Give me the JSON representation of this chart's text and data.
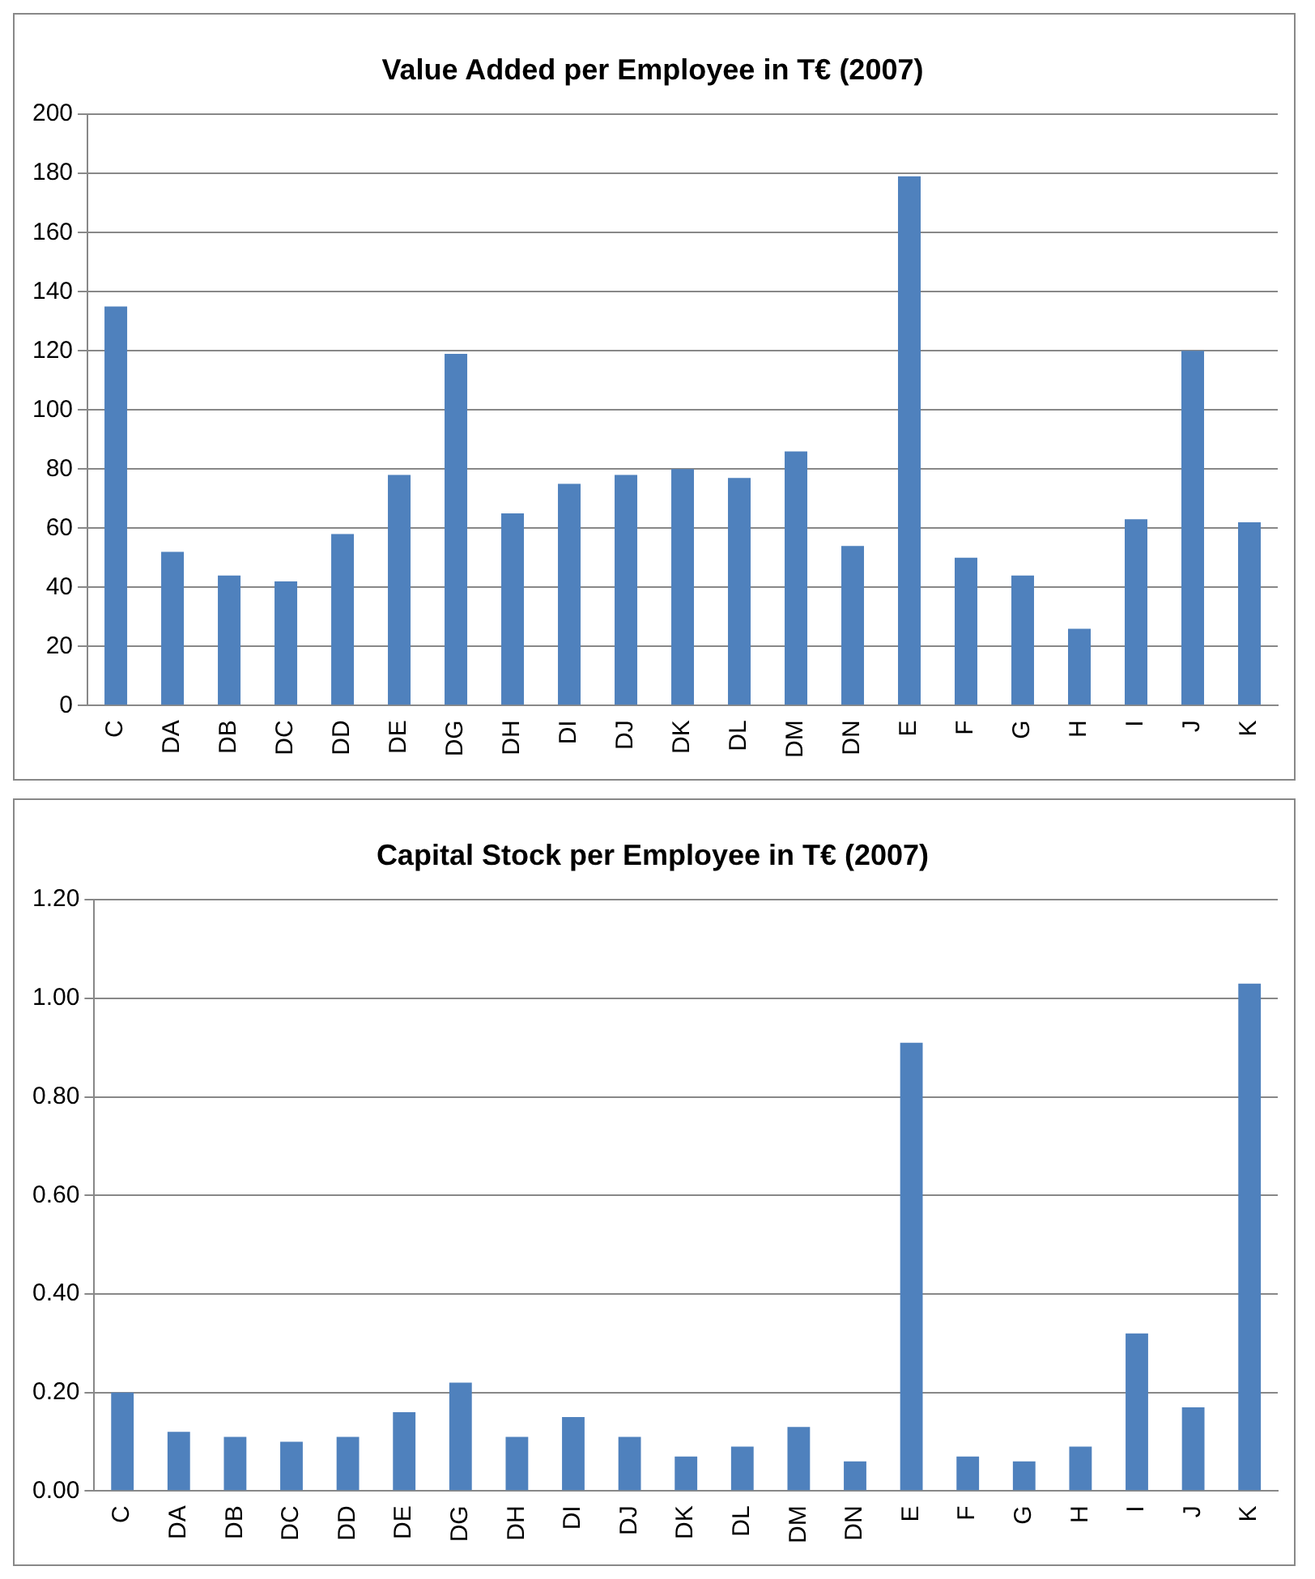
{
  "chart_data": [
    {
      "type": "bar",
      "title": "Value Added per Employee in T€ (2007)",
      "categories": [
        "C",
        "DA",
        "DB",
        "DC",
        "DD",
        "DE",
        "DG",
        "DH",
        "DI",
        "DJ",
        "DK",
        "DL",
        "DM",
        "DN",
        "E",
        "F",
        "G",
        "H",
        "I",
        "J",
        "K"
      ],
      "values": [
        135,
        52,
        44,
        42,
        58,
        78,
        119,
        65,
        75,
        78,
        80,
        77,
        86,
        54,
        179,
        50,
        44,
        26,
        63,
        120,
        62
      ],
      "color": "#4f81bd",
      "ylim": [
        0,
        200
      ],
      "yticks": [
        0,
        20,
        40,
        60,
        80,
        100,
        120,
        140,
        160,
        180,
        200
      ],
      "grid": "y",
      "legend": false
    },
    {
      "type": "bar",
      "title": "Capital Stock per Employee in T€ (2007)",
      "categories": [
        "C",
        "DA",
        "DB",
        "DC",
        "DD",
        "DE",
        "DG",
        "DH",
        "DI",
        "DJ",
        "DK",
        "DL",
        "DM",
        "DN",
        "E",
        "F",
        "G",
        "H",
        "I",
        "J",
        "K"
      ],
      "values": [
        0.2,
        0.12,
        0.11,
        0.1,
        0.11,
        0.16,
        0.22,
        0.11,
        0.15,
        0.11,
        0.07,
        0.09,
        0.13,
        0.06,
        0.91,
        0.07,
        0.06,
        0.09,
        0.32,
        0.17,
        1.03
      ],
      "color": "#4f81bd",
      "ylim": [
        0,
        1.2
      ],
      "yticks": [
        {
          "value": 0,
          "label": "0.00"
        },
        {
          "value": 0.2,
          "label": "0.20"
        },
        {
          "value": 0.4,
          "label": "0.40"
        },
        {
          "value": 0.6,
          "label": "0.60"
        },
        {
          "value": 0.8,
          "label": "0.80"
        },
        {
          "value": 1,
          "label": "1.00"
        },
        {
          "value": 1.2,
          "label": "1.20"
        }
      ],
      "grid": "y",
      "legend": false
    }
  ]
}
